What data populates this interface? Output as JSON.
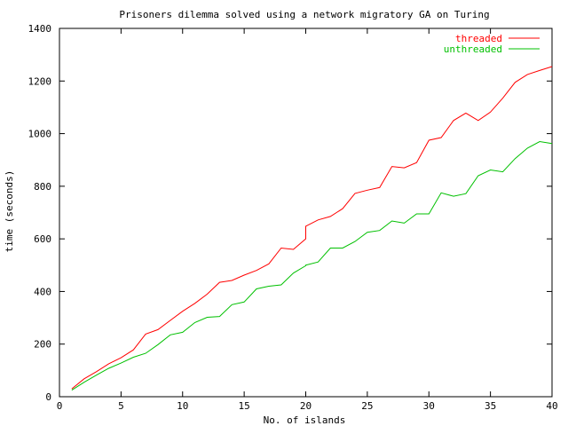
{
  "chart_data": {
    "type": "line",
    "title": "Prisoners dilemma solved using a network migratory GA on Turing",
    "xlabel": "No. of islands",
    "ylabel": "time (seconds)",
    "xlim": [
      0,
      40
    ],
    "ylim": [
      0,
      1400
    ],
    "x_ticks": [
      0,
      5,
      10,
      15,
      20,
      25,
      30,
      35,
      40
    ],
    "y_ticks": [
      0,
      200,
      400,
      600,
      800,
      1000,
      1200,
      1400
    ],
    "grid": false,
    "legend_position": "top-right",
    "x": [
      1,
      2,
      3,
      4,
      5,
      6,
      7,
      8,
      9,
      10,
      11,
      12,
      13,
      14,
      15,
      16,
      17,
      18,
      19,
      20,
      20,
      21,
      22,
      23,
      24,
      25,
      26,
      27,
      28,
      29,
      30,
      31,
      32,
      33,
      34,
      35,
      36,
      37,
      38,
      39,
      40
    ],
    "series": [
      {
        "name": "threaded",
        "color": "#ff0000",
        "values": [
          30,
          68,
          95,
          125,
          148,
          178,
          238,
          255,
          290,
          325,
          355,
          390,
          435,
          442,
          462,
          480,
          505,
          565,
          560,
          600,
          648,
          672,
          685,
          715,
          773,
          785,
          795,
          875,
          870,
          890,
          975,
          985,
          1050,
          1078,
          1050,
          1082,
          1135,
          1195,
          1225,
          1240,
          1255
        ]
      },
      {
        "name": "unthreaded",
        "color": "#00c000",
        "values": [
          25,
          55,
          82,
          108,
          128,
          150,
          165,
          198,
          235,
          245,
          282,
          302,
          305,
          350,
          360,
          410,
          420,
          425,
          470,
          498,
          500,
          512,
          565,
          565,
          590,
          625,
          632,
          668,
          660,
          695,
          695,
          775,
          762,
          772,
          840,
          862,
          855,
          905,
          945,
          970,
          962
        ]
      }
    ]
  }
}
